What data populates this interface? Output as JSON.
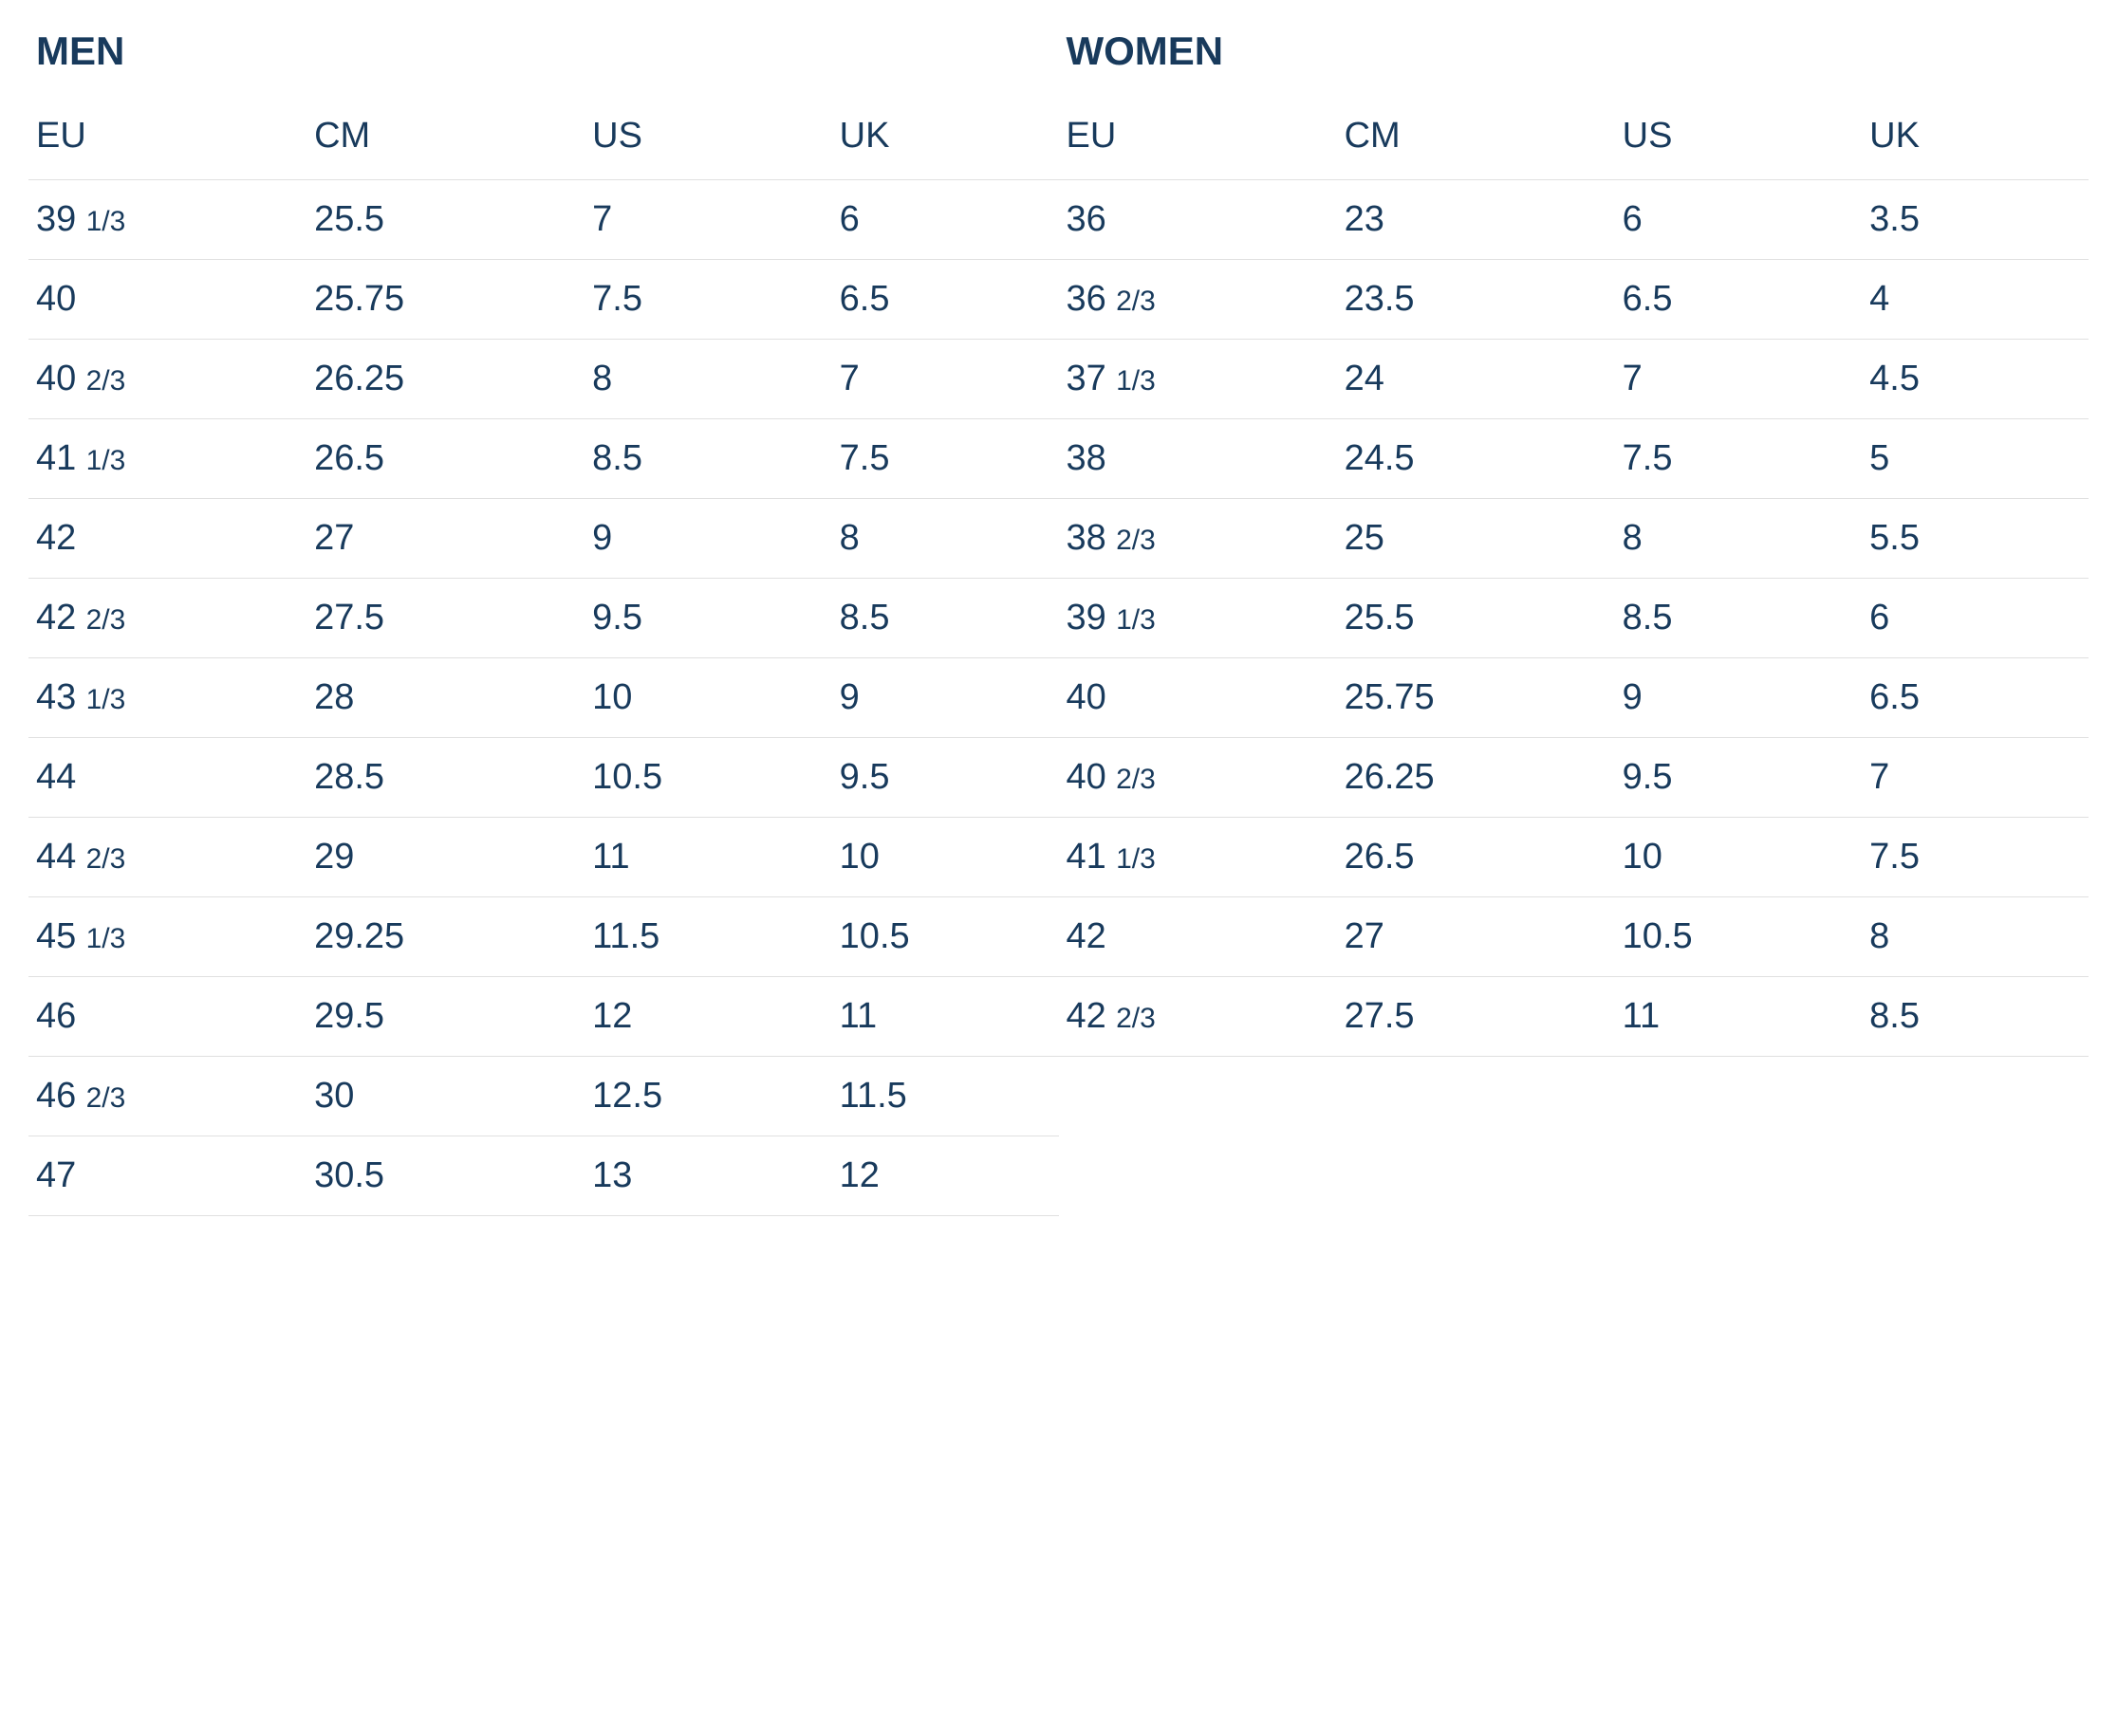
{
  "colors": {
    "text": "#183a5c",
    "background": "#ffffff",
    "border": "#e0e0e0"
  },
  "typography": {
    "title_fontsize": 42,
    "title_weight": 700,
    "header_fontsize": 38,
    "cell_fontsize": 38,
    "fraction_fontsize": 30
  },
  "men": {
    "title": "MEN",
    "columns": [
      "EU",
      "CM",
      "US",
      "UK"
    ],
    "rows": [
      {
        "eu": "39",
        "eu_frac": "1/3",
        "cm": "25.5",
        "us": "7",
        "uk": "6"
      },
      {
        "eu": "40",
        "eu_frac": "",
        "cm": "25.75",
        "us": "7.5",
        "uk": "6.5"
      },
      {
        "eu": "40",
        "eu_frac": "2/3",
        "cm": "26.25",
        "us": "8",
        "uk": "7"
      },
      {
        "eu": "41",
        "eu_frac": "1/3",
        "cm": "26.5",
        "us": "8.5",
        "uk": "7.5"
      },
      {
        "eu": "42",
        "eu_frac": "",
        "cm": "27",
        "us": "9",
        "uk": "8"
      },
      {
        "eu": "42",
        "eu_frac": "2/3",
        "cm": "27.5",
        "us": "9.5",
        "uk": "8.5"
      },
      {
        "eu": "43",
        "eu_frac": "1/3",
        "cm": "28",
        "us": "10",
        "uk": "9"
      },
      {
        "eu": "44",
        "eu_frac": "",
        "cm": "28.5",
        "us": "10.5",
        "uk": "9.5"
      },
      {
        "eu": "44",
        "eu_frac": "2/3",
        "cm": "29",
        "us": "11",
        "uk": "10"
      },
      {
        "eu": "45",
        "eu_frac": "1/3",
        "cm": "29.25",
        "us": "11.5",
        "uk": "10.5"
      },
      {
        "eu": "46",
        "eu_frac": "",
        "cm": "29.5",
        "us": "12",
        "uk": "11"
      },
      {
        "eu": "46",
        "eu_frac": "2/3",
        "cm": "30",
        "us": "12.5",
        "uk": "11.5"
      },
      {
        "eu": "47",
        "eu_frac": "",
        "cm": "30.5",
        "us": "13",
        "uk": "12"
      }
    ]
  },
  "women": {
    "title": "WOMEN",
    "columns": [
      "EU",
      "CM",
      "US",
      "UK"
    ],
    "rows": [
      {
        "eu": "36",
        "eu_frac": "",
        "cm": "23",
        "us": "6",
        "uk": "3.5"
      },
      {
        "eu": "36",
        "eu_frac": "2/3",
        "cm": "23.5",
        "us": "6.5",
        "uk": "4"
      },
      {
        "eu": "37",
        "eu_frac": "1/3",
        "cm": "24",
        "us": "7",
        "uk": "4.5"
      },
      {
        "eu": "38",
        "eu_frac": "",
        "cm": "24.5",
        "us": "7.5",
        "uk": "5"
      },
      {
        "eu": "38",
        "eu_frac": "2/3",
        "cm": "25",
        "us": "8",
        "uk": "5.5"
      },
      {
        "eu": "39",
        "eu_frac": "1/3",
        "cm": "25.5",
        "us": "8.5",
        "uk": "6"
      },
      {
        "eu": "40",
        "eu_frac": "",
        "cm": "25.75",
        "us": "9",
        "uk": "6.5"
      },
      {
        "eu": "40",
        "eu_frac": "2/3",
        "cm": "26.25",
        "us": "9.5",
        "uk": "7"
      },
      {
        "eu": "41",
        "eu_frac": "1/3",
        "cm": "26.5",
        "us": "10",
        "uk": "7.5"
      },
      {
        "eu": "42",
        "eu_frac": "",
        "cm": "27",
        "us": "10.5",
        "uk": "8"
      },
      {
        "eu": "42",
        "eu_frac": "2/3",
        "cm": "27.5",
        "us": "11",
        "uk": "8.5"
      }
    ]
  }
}
